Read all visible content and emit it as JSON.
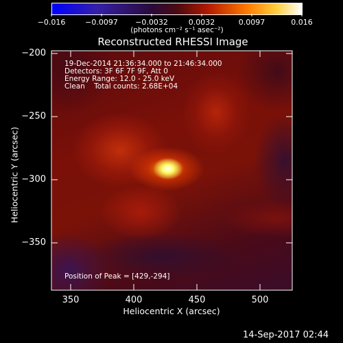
{
  "colorbar": {
    "ticks": [
      "−0.016",
      "−0.0097",
      "−0.0032",
      "0.0032",
      "0.0097",
      "0.016"
    ],
    "units": "(photons cm⁻² s⁻¹ asec⁻²)",
    "colormap": [
      "#0000ff",
      "#3a1fa0",
      "#2a0a3a",
      "#6a0a10",
      "#d02000",
      "#ff8c00",
      "#ffff60",
      "#ffffff"
    ]
  },
  "chart_data": {
    "type": "heatmap",
    "title": "Reconstructed RHESSI Image",
    "xlabel": "Heliocentric X (arcsec)",
    "ylabel": "Heliocentric Y (arcsec)",
    "xlim": [
      335,
      525
    ],
    "ylim": [
      -388,
      -198
    ],
    "x_ticks": [
      350,
      400,
      450,
      500
    ],
    "y_ticks": [
      -200,
      -250,
      -300,
      -350
    ],
    "x_tick_labels": [
      "350",
      "400",
      "450",
      "500"
    ],
    "y_tick_labels": [
      "−200",
      "−250",
      "−300",
      "−350"
    ],
    "peak": {
      "x": 429,
      "y": -294
    },
    "info": {
      "line1": "19-Dec-2014 21:36:34.000 to 21:46:34.000",
      "line2": "Detectors: 3F 6F 7F 9F, Att 0",
      "line3": "Energy Range: 12.0 - 25.0 keV",
      "line4": "Clean    Total counts: 2.68E+04"
    },
    "peak_label": "Position of Peak = [429,-294]"
  },
  "footer_date": "14-Sep-2017 02:44"
}
